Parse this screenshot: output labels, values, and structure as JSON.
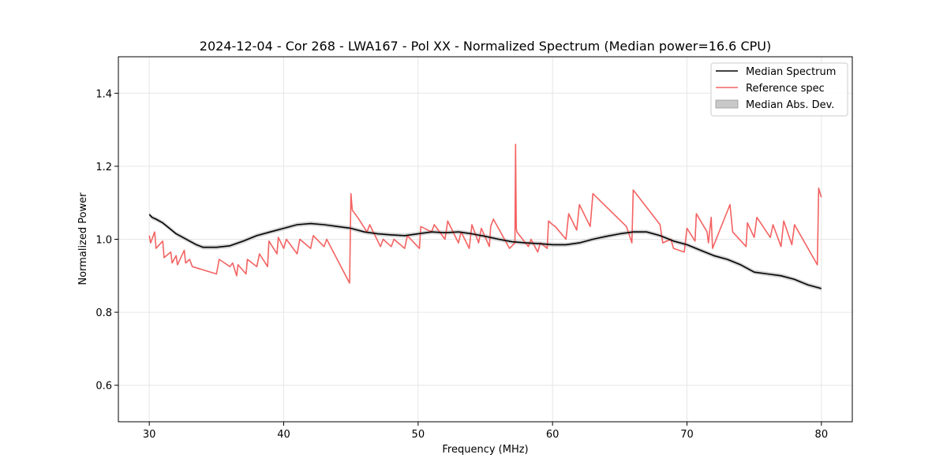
{
  "chart_data": {
    "type": "line",
    "title": "2024-12-04 - Cor 268 - LWA167 - Pol XX - Normalized Spectrum (Median power=16.6 CPU)",
    "xlabel": "Frequency (MHz)",
    "ylabel": "Normalized Power",
    "xlim": [
      27.7,
      82.3
    ],
    "ylim": [
      0.5,
      1.5
    ],
    "xticks": [
      30,
      40,
      50,
      60,
      70,
      80
    ],
    "xtick_labels": [
      "30",
      "40",
      "50",
      "60",
      "70",
      "80"
    ],
    "yticks": [
      0.6,
      0.8,
      1.0,
      1.2,
      1.4
    ],
    "ytick_labels": [
      "0.6",
      "0.8",
      "1.0",
      "1.2",
      "1.4"
    ],
    "grid": true,
    "legend_position": "top-right",
    "legend": [
      {
        "label": "Median Spectrum",
        "kind": "line",
        "color": "#000000"
      },
      {
        "label": "Reference spec",
        "kind": "line",
        "color": "#f46262"
      },
      {
        "label": "Median Abs. Dev.",
        "kind": "band",
        "color": "#c8c8c8"
      }
    ],
    "series": [
      {
        "name": "Median Spectrum",
        "color": "#000000",
        "x": [
          30.0,
          30.2,
          30.5,
          31.0,
          31.5,
          32.0,
          32.5,
          33.0,
          33.5,
          34.0,
          35.0,
          36.0,
          37.0,
          38.0,
          39.0,
          40.0,
          41.0,
          42.0,
          43.0,
          44.0,
          45.0,
          46.0,
          47.0,
          48.0,
          49.0,
          50.0,
          51.0,
          52.0,
          53.0,
          54.0,
          55.0,
          56.0,
          57.0,
          58.0,
          59.0,
          60.0,
          61.0,
          62.0,
          63.0,
          64.0,
          65.0,
          66.0,
          67.0,
          68.0,
          69.0,
          70.0,
          71.0,
          72.0,
          73.0,
          74.0,
          75.0,
          76.0,
          77.0,
          78.0,
          79.0,
          80.0
        ],
        "values": [
          1.068,
          1.06,
          1.055,
          1.045,
          1.03,
          1.015,
          1.005,
          0.995,
          0.985,
          0.978,
          0.978,
          0.982,
          0.995,
          1.01,
          1.02,
          1.03,
          1.04,
          1.043,
          1.04,
          1.035,
          1.03,
          1.02,
          1.015,
          1.012,
          1.01,
          1.015,
          1.02,
          1.018,
          1.02,
          1.015,
          1.008,
          1.0,
          0.993,
          0.99,
          0.988,
          0.985,
          0.985,
          0.99,
          1.0,
          1.008,
          1.015,
          1.02,
          1.02,
          1.01,
          0.995,
          0.985,
          0.97,
          0.955,
          0.945,
          0.93,
          0.91,
          0.905,
          0.9,
          0.89,
          0.875,
          0.865
        ],
        "mad": 0.006
      },
      {
        "name": "Reference spec",
        "color": "#f46262",
        "x": [
          30.0,
          30.1,
          30.4,
          30.5,
          31.0,
          31.1,
          31.6,
          31.7,
          32.0,
          32.1,
          32.6,
          32.7,
          33.0,
          33.2,
          35.0,
          35.2,
          36.0,
          36.2,
          36.5,
          36.6,
          37.2,
          37.3,
          38.0,
          38.2,
          38.8,
          38.9,
          39.5,
          39.6,
          40.0,
          40.2,
          41.0,
          41.2,
          42.0,
          42.2,
          43.0,
          43.2,
          44.9,
          45.0,
          45.1,
          45.5,
          46.2,
          46.4,
          47.2,
          47.4,
          48.0,
          48.2,
          49.0,
          49.2,
          50.1,
          50.2,
          51.0,
          51.2,
          52.0,
          52.2,
          53.0,
          53.2,
          53.8,
          54.0,
          54.5,
          54.7,
          55.3,
          55.4,
          55.6,
          56.8,
          57.2,
          57.25,
          57.3,
          57.35,
          58.2,
          58.4,
          58.9,
          59.1,
          59.6,
          59.7,
          60.0,
          60.2,
          61.0,
          61.2,
          61.8,
          62.0,
          62.8,
          63.0,
          65.5,
          65.9,
          66.0,
          68.0,
          68.2,
          68.8,
          69.0,
          69.8,
          70.0,
          70.6,
          70.7,
          71.5,
          71.6,
          71.8,
          71.9,
          73.2,
          73.4,
          74.4,
          74.5,
          75.0,
          75.2,
          76.2,
          76.4,
          77.0,
          77.2,
          77.8,
          78.0,
          79.7,
          79.8,
          80.0
        ],
        "values": [
          1.01,
          0.99,
          1.02,
          0.975,
          0.995,
          0.95,
          0.965,
          0.935,
          0.955,
          0.93,
          0.97,
          0.935,
          0.945,
          0.925,
          0.905,
          0.945,
          0.925,
          0.935,
          0.9,
          0.93,
          0.905,
          0.945,
          0.925,
          0.96,
          0.925,
          0.995,
          0.96,
          1.005,
          0.975,
          1.0,
          0.96,
          1.0,
          0.975,
          1.01,
          0.98,
          1.0,
          0.88,
          1.125,
          1.08,
          1.06,
          1.02,
          1.04,
          0.98,
          1.0,
          0.98,
          1.0,
          0.975,
          1.01,
          0.975,
          1.035,
          1.02,
          1.04,
          1.0,
          1.05,
          0.99,
          1.02,
          0.975,
          1.04,
          0.99,
          1.03,
          0.98,
          1.035,
          1.055,
          0.975,
          0.99,
          1.26,
          1.03,
          1.02,
          0.98,
          1.0,
          0.965,
          0.99,
          0.975,
          1.05,
          1.04,
          1.035,
          1.0,
          1.07,
          1.025,
          1.095,
          1.035,
          1.125,
          1.035,
          0.99,
          1.135,
          1.04,
          0.99,
          1.0,
          0.975,
          0.965,
          1.03,
          0.995,
          1.07,
          1.02,
          0.99,
          1.06,
          0.975,
          1.095,
          1.02,
          0.98,
          1.045,
          1.005,
          1.06,
          1.005,
          1.04,
          0.98,
          1.05,
          0.985,
          1.04,
          0.93,
          1.14,
          1.115
        ]
      }
    ]
  }
}
